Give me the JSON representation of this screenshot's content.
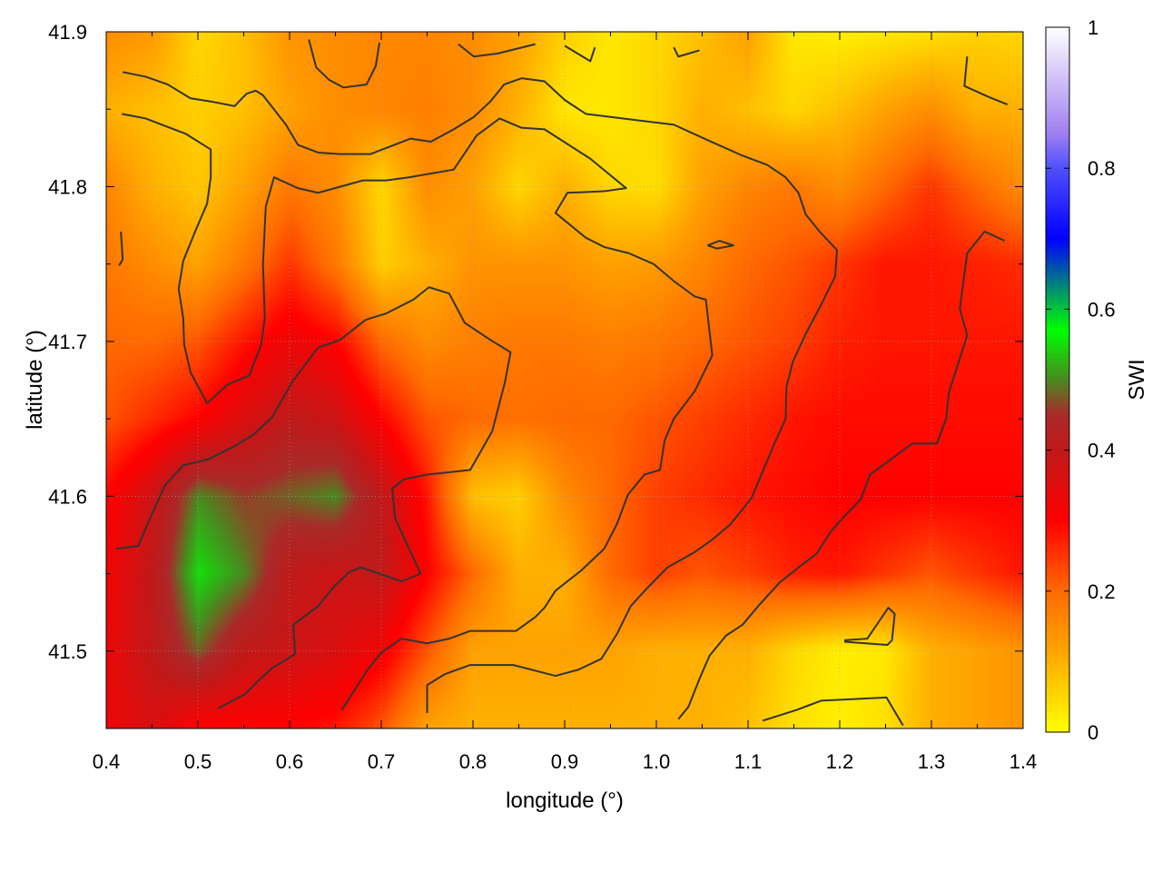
{
  "chart_data": {
    "type": "heatmap",
    "xlabel": "longitude (°)",
    "ylabel": "latitude (°)",
    "colorbar_label": "SWI",
    "xlim": [
      0.4,
      1.4
    ],
    "ylim": [
      41.45,
      41.9
    ],
    "clim": [
      0,
      1
    ],
    "grid": true,
    "x_ticks": [
      "0.4",
      "0.5",
      "0.6",
      "0.7",
      "0.8",
      "0.9",
      "1.0",
      "1.1",
      "1.2",
      "1.3",
      "1.4"
    ],
    "y_ticks": [
      "41.5",
      "41.6",
      "41.7",
      "41.8",
      "41.9"
    ],
    "colorbar_ticks": [
      "0",
      "0.2",
      "0.4",
      "0.6",
      "0.8",
      "1"
    ],
    "colormap": [
      [
        0.0,
        "#ffff00"
      ],
      [
        0.1,
        "#ffb000"
      ],
      [
        0.2,
        "#ff6a00"
      ],
      [
        0.3,
        "#ff0000"
      ],
      [
        0.4,
        "#c01a1a"
      ],
      [
        0.45,
        "#aa2a2a"
      ],
      [
        0.5,
        "#4a8a20"
      ],
      [
        0.57,
        "#00ff00"
      ],
      [
        0.62,
        "#00a060"
      ],
      [
        0.7,
        "#0000ff"
      ],
      [
        0.8,
        "#5050ff"
      ],
      [
        0.85,
        "#a080f0"
      ],
      [
        1.0,
        "#ffffff"
      ]
    ],
    "grid_lon": [
      0.4,
      0.45,
      0.5,
      0.55,
      0.6,
      0.65,
      0.7,
      0.75,
      0.8,
      0.85,
      0.9,
      0.95,
      1.0,
      1.05,
      1.1,
      1.15,
      1.2,
      1.25,
      1.3,
      1.35,
      1.4
    ],
    "grid_lat": [
      41.9,
      41.85,
      41.8,
      41.75,
      41.7,
      41.65,
      41.6,
      41.55,
      41.5,
      41.45
    ],
    "values": [
      [
        0.15,
        0.13,
        0.05,
        0.08,
        0.14,
        0.15,
        0.16,
        0.16,
        0.15,
        0.12,
        0.06,
        0.03,
        0.05,
        0.08,
        0.12,
        0.03,
        0.02,
        0.03,
        0.04,
        0.06,
        0.05
      ],
      [
        0.1,
        0.08,
        0.06,
        0.08,
        0.12,
        0.15,
        0.16,
        0.17,
        0.15,
        0.1,
        0.03,
        0.03,
        0.05,
        0.1,
        0.08,
        0.05,
        0.08,
        0.12,
        0.15,
        0.1,
        0.1
      ],
      [
        0.16,
        0.1,
        0.07,
        0.12,
        0.18,
        0.15,
        0.05,
        0.15,
        0.12,
        0.05,
        0.1,
        0.05,
        0.04,
        0.12,
        0.16,
        0.18,
        0.15,
        0.2,
        0.25,
        0.2,
        0.15
      ],
      [
        0.18,
        0.15,
        0.12,
        0.18,
        0.25,
        0.18,
        0.06,
        0.1,
        0.14,
        0.14,
        0.14,
        0.12,
        0.13,
        0.16,
        0.2,
        0.22,
        0.25,
        0.28,
        0.28,
        0.27,
        0.26
      ],
      [
        0.2,
        0.2,
        0.22,
        0.28,
        0.33,
        0.3,
        0.2,
        0.15,
        0.17,
        0.18,
        0.18,
        0.17,
        0.18,
        0.2,
        0.22,
        0.24,
        0.27,
        0.28,
        0.28,
        0.28,
        0.28
      ],
      [
        0.22,
        0.26,
        0.3,
        0.36,
        0.4,
        0.38,
        0.3,
        0.22,
        0.2,
        0.19,
        0.2,
        0.2,
        0.22,
        0.24,
        0.26,
        0.28,
        0.29,
        0.29,
        0.29,
        0.29,
        0.29
      ],
      [
        0.3,
        0.38,
        0.5,
        0.46,
        0.48,
        0.5,
        0.4,
        0.28,
        0.08,
        0.06,
        0.15,
        0.2,
        0.24,
        0.26,
        0.28,
        0.29,
        0.3,
        0.3,
        0.3,
        0.3,
        0.3
      ],
      [
        0.32,
        0.4,
        0.55,
        0.5,
        0.4,
        0.38,
        0.4,
        0.3,
        0.2,
        0.1,
        0.1,
        0.2,
        0.24,
        0.22,
        0.24,
        0.27,
        0.28,
        0.25,
        0.22,
        0.25,
        0.28
      ],
      [
        0.33,
        0.4,
        0.48,
        0.4,
        0.38,
        0.36,
        0.32,
        0.22,
        0.12,
        0.12,
        0.12,
        0.12,
        0.1,
        0.1,
        0.1,
        0.05,
        0.02,
        0.03,
        0.1,
        0.12,
        0.14
      ],
      [
        0.33,
        0.36,
        0.3,
        0.3,
        0.3,
        0.28,
        0.22,
        0.12,
        0.1,
        0.1,
        0.1,
        0.1,
        0.1,
        0.1,
        0.08,
        0.04,
        0.02,
        0.04,
        0.1,
        0.12,
        0.14
      ]
    ],
    "contour_color": "#333333",
    "contours": [
      [
        [
          0.417,
          41.847
        ],
        [
          0.443,
          41.844
        ],
        [
          0.487,
          41.834
        ],
        [
          0.514,
          41.824
        ],
        [
          0.514,
          41.806
        ],
        [
          0.51,
          41.789
        ],
        [
          0.497,
          41.771
        ],
        [
          0.484,
          41.752
        ],
        [
          0.479,
          41.734
        ],
        [
          0.484,
          41.715
        ],
        [
          0.485,
          41.698
        ],
        [
          0.492,
          41.68
        ],
        [
          0.51,
          41.66
        ],
        [
          0.532,
          41.672
        ],
        [
          0.556,
          41.678
        ],
        [
          0.569,
          41.698
        ],
        [
          0.573,
          41.715
        ],
        [
          0.571,
          41.75
        ],
        [
          0.574,
          41.787
        ],
        [
          0.583,
          41.806
        ],
        [
          0.609,
          41.799
        ],
        [
          0.631,
          41.796
        ],
        [
          0.68,
          41.804
        ],
        [
          0.705,
          41.804
        ],
        [
          0.73,
          41.806
        ],
        [
          0.779,
          41.811
        ],
        [
          0.804,
          41.833
        ],
        [
          0.829,
          41.844
        ],
        [
          0.853,
          41.838
        ],
        [
          0.878,
          41.837
        ],
        [
          0.928,
          41.818
        ],
        [
          0.967,
          41.799
        ],
        [
          0.943,
          41.797
        ],
        [
          0.903,
          41.796
        ],
        [
          0.89,
          41.783
        ],
        [
          0.923,
          41.767
        ],
        [
          0.943,
          41.761
        ],
        [
          0.97,
          41.757
        ],
        [
          0.997,
          41.75
        ],
        [
          1.019,
          41.739
        ],
        [
          1.042,
          41.729
        ],
        [
          1.054,
          41.727
        ],
        [
          1.061,
          41.691
        ],
        [
          1.042,
          41.668
        ],
        [
          1.019,
          41.65
        ],
        [
          1.009,
          41.636
        ],
        [
          1.004,
          41.617
        ],
        [
          0.987,
          41.614
        ],
        [
          0.969,
          41.601
        ],
        [
          0.957,
          41.582
        ],
        [
          0.943,
          41.566
        ],
        [
          0.918,
          41.552
        ],
        [
          0.89,
          41.539
        ],
        [
          0.878,
          41.528
        ],
        [
          0.868,
          41.522
        ],
        [
          0.847,
          41.513
        ],
        [
          0.819,
          41.513
        ],
        [
          0.797,
          41.513
        ],
        [
          0.774,
          41.508
        ],
        [
          0.75,
          41.505
        ],
        [
          0.722,
          41.508
        ],
        [
          0.7,
          41.499
        ],
        [
          0.685,
          41.488
        ],
        [
          0.67,
          41.474
        ],
        [
          0.657,
          41.462
        ]
      ],
      [
        [
          0.411,
          41.566
        ],
        [
          0.435,
          41.568
        ],
        [
          0.448,
          41.586
        ],
        [
          0.464,
          41.607
        ],
        [
          0.484,
          41.62
        ],
        [
          0.512,
          41.624
        ],
        [
          0.542,
          41.633
        ],
        [
          0.561,
          41.64
        ],
        [
          0.581,
          41.651
        ],
        [
          0.603,
          41.674
        ],
        [
          0.631,
          41.696
        ],
        [
          0.655,
          41.701
        ],
        [
          0.683,
          41.714
        ],
        [
          0.705,
          41.718
        ],
        [
          0.735,
          41.727
        ],
        [
          0.752,
          41.735
        ],
        [
          0.774,
          41.731
        ],
        [
          0.791,
          41.712
        ],
        [
          0.819,
          41.701
        ],
        [
          0.841,
          41.693
        ],
        [
          0.835,
          41.674
        ],
        [
          0.821,
          41.642
        ],
        [
          0.797,
          41.617
        ],
        [
          0.75,
          41.614
        ],
        [
          0.725,
          41.611
        ],
        [
          0.712,
          41.605
        ],
        [
          0.715,
          41.586
        ],
        [
          0.728,
          41.569
        ],
        [
          0.743,
          41.55
        ],
        [
          0.722,
          41.545
        ],
        [
          0.678,
          41.554
        ],
        [
          0.665,
          41.551
        ],
        [
          0.649,
          41.542
        ],
        [
          0.631,
          41.529
        ],
        [
          0.604,
          41.517
        ],
        [
          0.606,
          41.498
        ],
        [
          0.581,
          41.489
        ],
        [
          0.566,
          41.481
        ],
        [
          0.551,
          41.472
        ],
        [
          0.522,
          41.463
        ]
      ],
      [
        [
          0.418,
          41.874
        ],
        [
          0.443,
          41.871
        ],
        [
          0.467,
          41.866
        ],
        [
          0.492,
          41.857
        ],
        [
          0.514,
          41.855
        ],
        [
          0.54,
          41.852
        ],
        [
          0.553,
          41.86
        ],
        [
          0.563,
          41.862
        ],
        [
          0.571,
          41.859
        ],
        [
          0.596,
          41.84
        ],
        [
          0.609,
          41.827
        ],
        [
          0.631,
          41.822
        ],
        [
          0.655,
          41.821
        ],
        [
          0.688,
          41.821
        ],
        [
          0.732,
          41.831
        ],
        [
          0.754,
          41.829
        ],
        [
          0.779,
          41.837
        ],
        [
          0.801,
          41.845
        ],
        [
          0.819,
          41.855
        ],
        [
          0.834,
          41.866
        ],
        [
          0.853,
          41.87
        ],
        [
          0.878,
          41.868
        ],
        [
          0.9,
          41.856
        ],
        [
          0.923,
          41.847
        ],
        [
          0.977,
          41.843
        ],
        [
          1.019,
          41.84
        ],
        [
          1.056,
          41.83
        ],
        [
          1.094,
          41.82
        ],
        [
          1.121,
          41.814
        ],
        [
          1.141,
          41.806
        ],
        [
          1.155,
          41.796
        ],
        [
          1.163,
          41.782
        ],
        [
          1.178,
          41.771
        ],
        [
          1.197,
          41.759
        ],
        [
          1.195,
          41.742
        ],
        [
          1.18,
          41.724
        ],
        [
          1.163,
          41.705
        ],
        [
          1.149,
          41.687
        ],
        [
          1.142,
          41.671
        ],
        [
          1.141,
          41.65
        ],
        [
          1.128,
          41.633
        ],
        [
          1.116,
          41.616
        ],
        [
          1.104,
          41.599
        ],
        [
          1.081,
          41.582
        ],
        [
          1.061,
          41.572
        ],
        [
          1.042,
          41.564
        ],
        [
          1.012,
          41.554
        ],
        [
          0.989,
          41.54
        ],
        [
          0.972,
          41.529
        ],
        [
          0.957,
          41.511
        ],
        [
          0.94,
          41.495
        ],
        [
          0.915,
          41.488
        ],
        [
          0.89,
          41.484
        ],
        [
          0.844,
          41.491
        ],
        [
          0.797,
          41.491
        ],
        [
          0.769,
          41.485
        ],
        [
          0.75,
          41.478
        ],
        [
          0.75,
          41.46
        ]
      ],
      [
        [
          1.38,
          41.765
        ],
        [
          1.358,
          41.771
        ],
        [
          1.339,
          41.757
        ],
        [
          1.331,
          41.721
        ],
        [
          1.339,
          41.704
        ],
        [
          1.331,
          41.689
        ],
        [
          1.319,
          41.667
        ],
        [
          1.316,
          41.65
        ],
        [
          1.306,
          41.634
        ],
        [
          1.279,
          41.634
        ],
        [
          1.254,
          41.623
        ],
        [
          1.233,
          41.614
        ],
        [
          1.223,
          41.598
        ],
        [
          1.205,
          41.587
        ],
        [
          1.19,
          41.577
        ],
        [
          1.175,
          41.563
        ],
        [
          1.155,
          41.554
        ],
        [
          1.134,
          41.544
        ],
        [
          1.111,
          41.529
        ],
        [
          1.094,
          41.517
        ],
        [
          1.076,
          41.51
        ],
        [
          1.058,
          41.497
        ],
        [
          1.047,
          41.482
        ],
        [
          1.035,
          41.464
        ],
        [
          1.024,
          41.456
        ]
      ],
      [
        [
          0.621,
          41.895
        ],
        [
          0.629,
          41.877
        ],
        [
          0.643,
          41.869
        ],
        [
          0.659,
          41.864
        ],
        [
          0.684,
          41.866
        ],
        [
          0.694,
          41.878
        ],
        [
          0.698,
          41.893
        ]
      ],
      [
        [
          0.784,
          41.892
        ],
        [
          0.801,
          41.884
        ],
        [
          0.827,
          41.886
        ],
        [
          0.868,
          41.892
        ]
      ],
      [
        [
          0.9,
          41.891
        ],
        [
          0.928,
          41.881
        ],
        [
          0.933,
          41.89
        ]
      ],
      [
        [
          1.019,
          41.89
        ],
        [
          1.024,
          41.884
        ],
        [
          1.047,
          41.888
        ]
      ],
      [
        [
          1.339,
          41.884
        ],
        [
          1.336,
          41.865
        ],
        [
          1.362,
          41.858
        ],
        [
          1.383,
          41.853
        ]
      ],
      [
        [
          1.116,
          41.455
        ],
        [
          1.153,
          41.462
        ],
        [
          1.18,
          41.468
        ],
        [
          1.251,
          41.47
        ],
        [
          1.269,
          41.452
        ]
      ],
      [
        [
          1.205,
          41.507
        ],
        [
          1.23,
          41.508
        ],
        [
          1.253,
          41.528
        ],
        [
          1.26,
          41.524
        ],
        [
          1.257,
          41.507
        ],
        [
          1.252,
          41.504
        ],
        [
          1.205,
          41.506
        ]
      ],
      [
        [
          1.056,
          41.762
        ],
        [
          1.069,
          41.765
        ],
        [
          1.084,
          41.762
        ],
        [
          1.066,
          41.76
        ],
        [
          1.056,
          41.762
        ]
      ],
      [
        [
          0.416,
          41.771
        ],
        [
          0.418,
          41.753
        ],
        [
          0.414,
          41.749
        ]
      ]
    ]
  }
}
